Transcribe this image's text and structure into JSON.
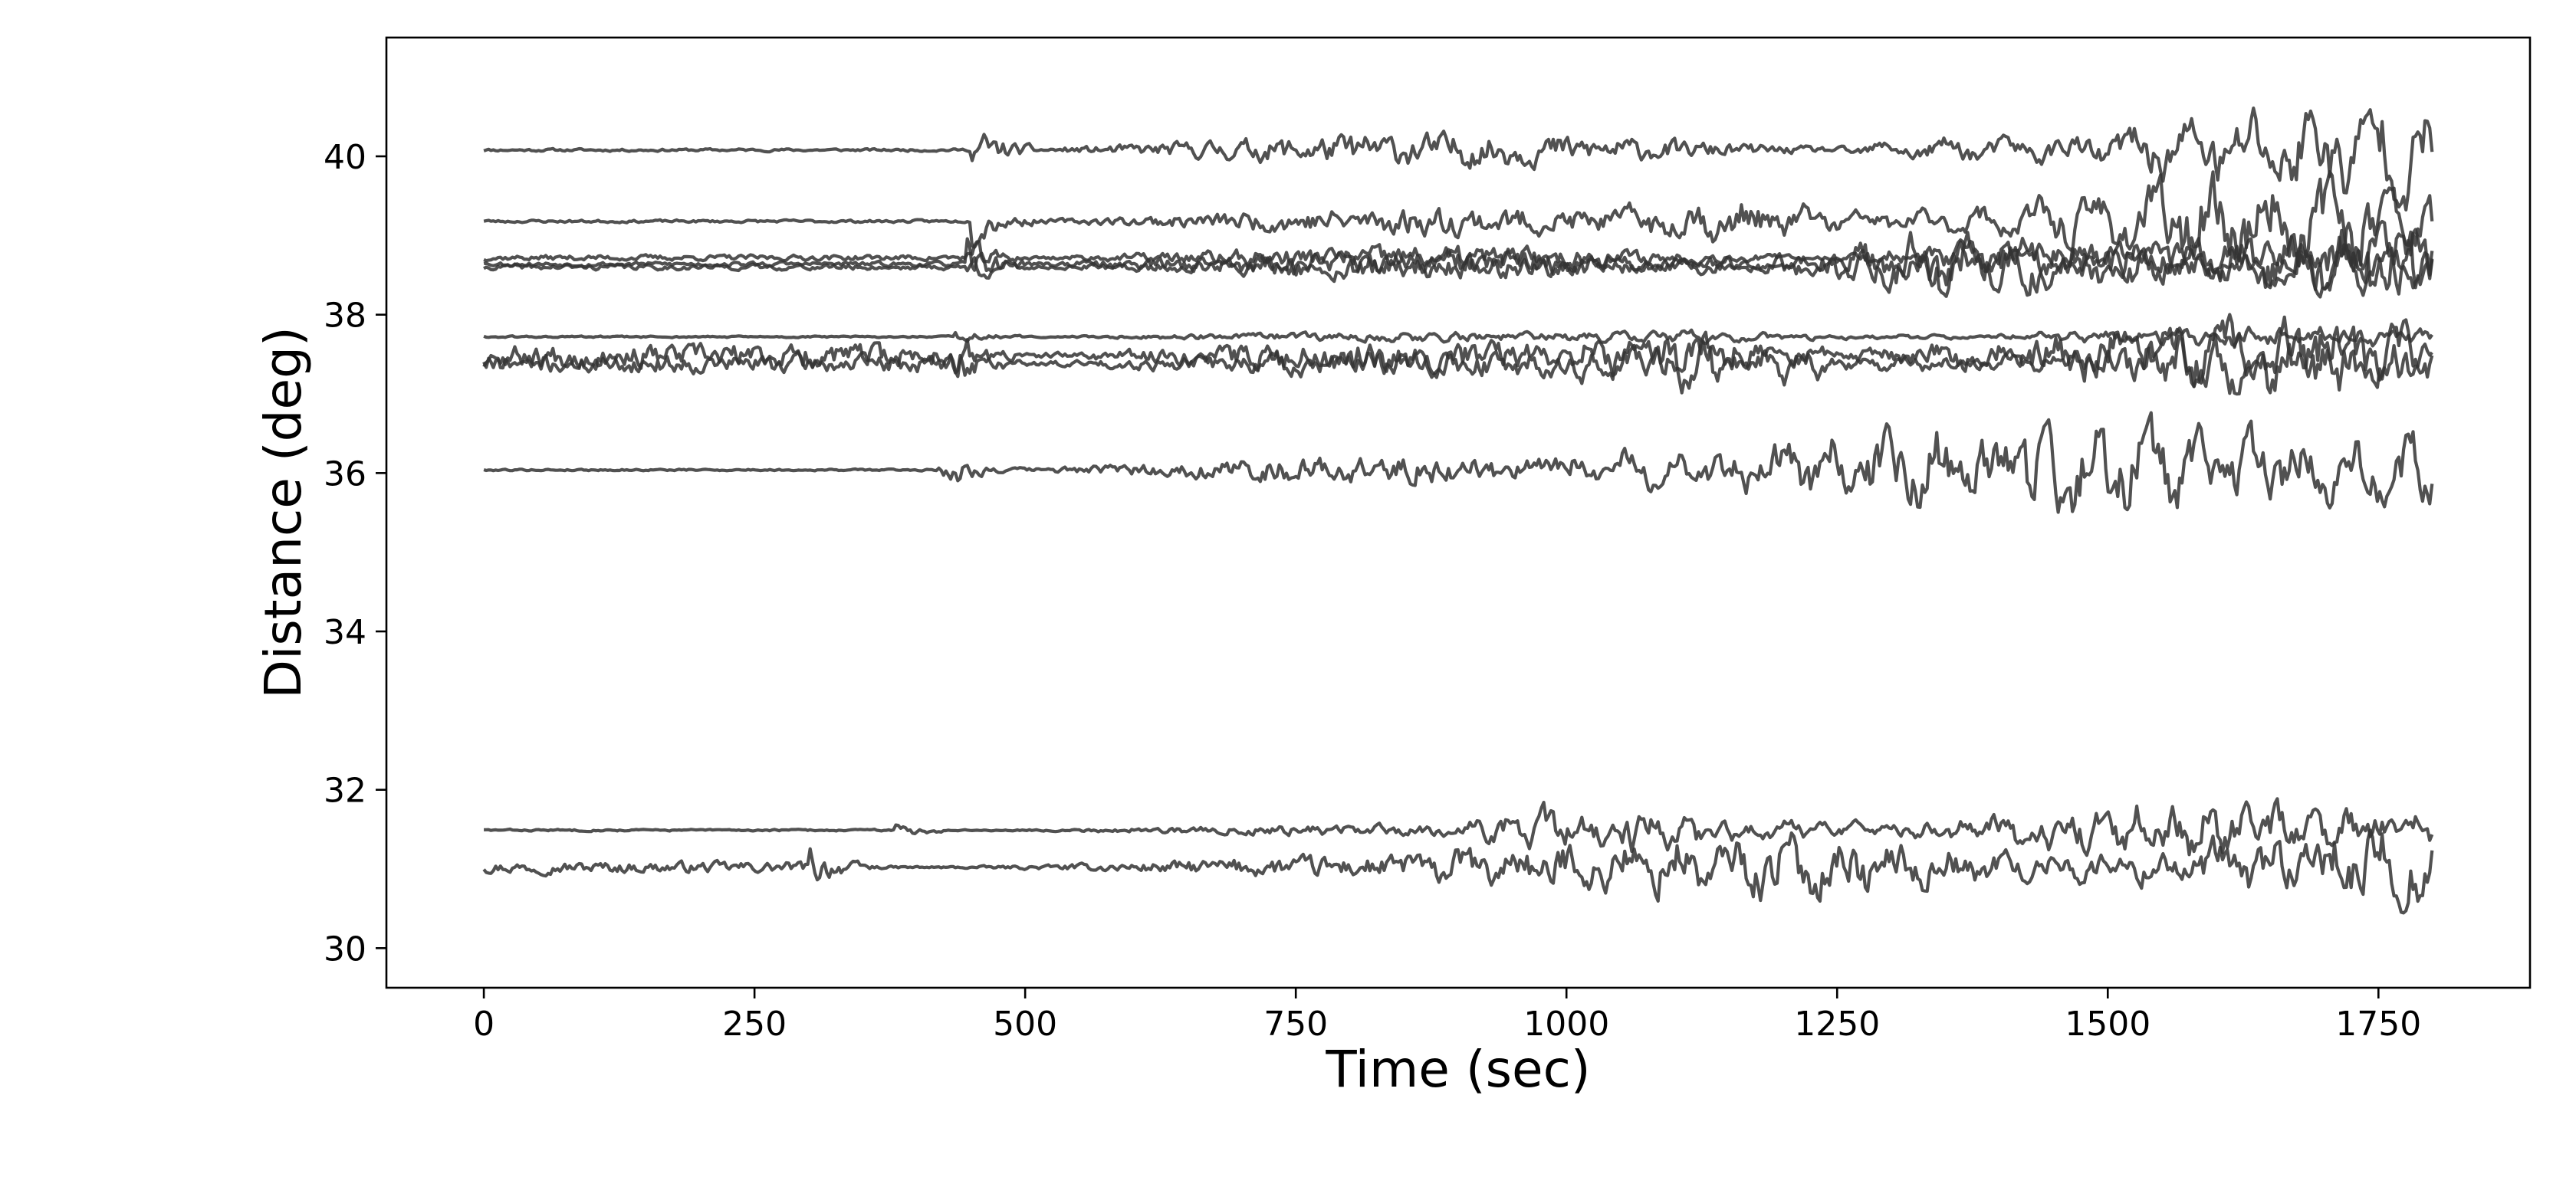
{
  "chart_data": {
    "type": "line",
    "title": "",
    "xlabel": "Time (sec)",
    "ylabel": "Distance (deg)",
    "xlim": [
      -90,
      1890
    ],
    "ylim": [
      29.5,
      41.5
    ],
    "xticks": [
      0,
      250,
      500,
      750,
      1000,
      1250,
      1500,
      1750
    ],
    "yticks": [
      30,
      32,
      34,
      36,
      38,
      40
    ],
    "xtick_labels": [
      "0",
      "250",
      "500",
      "750",
      "1000",
      "1250",
      "1500",
      "1750"
    ],
    "ytick_labels": [
      "30",
      "32",
      "34",
      "36",
      "38",
      "40"
    ],
    "grid": false,
    "legend": "none",
    "line_color": "#333333",
    "series": [
      {
        "offset": 40.08,
        "onset": 450,
        "pre_amp": 0.03,
        "coda_amp": 0.35,
        "late_amp": 0.45,
        "late_start": 1250,
        "seed": 11
      },
      {
        "offset": 39.18,
        "onset": 450,
        "pre_amp": 0.03,
        "coda_amp": 0.3,
        "late_amp": 0.45,
        "late_start": 1050,
        "seed": 23
      },
      {
        "offset": 38.72,
        "onset": 445,
        "pre_amp": 0.06,
        "coda_amp": 0.25,
        "late_amp": 0.3,
        "late_start": 1250,
        "seed": 37
      },
      {
        "offset": 38.6,
        "onset": 445,
        "pre_amp": 0.06,
        "coda_amp": 0.25,
        "late_amp": 0.35,
        "late_start": 1100,
        "seed": 41
      },
      {
        "offset": 38.64,
        "onset": 445,
        "pre_amp": 0.05,
        "coda_amp": 0.3,
        "late_amp": 0.5,
        "late_start": 1200,
        "seed": 53
      },
      {
        "offset": 37.72,
        "onset": 435,
        "pre_amp": 0.02,
        "coda_amp": 0.1,
        "late_amp": 0.08,
        "late_start": 1000,
        "seed": 61
      },
      {
        "offset": 37.48,
        "onset": 435,
        "pre_amp": 0.25,
        "coda_amp": 0.35,
        "late_amp": 0.3,
        "late_start": 1000,
        "seed": 67
      },
      {
        "offset": 37.38,
        "onset": 435,
        "pre_amp": 0.2,
        "coda_amp": 0.3,
        "late_amp": 0.3,
        "late_start": 1000,
        "seed": 71
      },
      {
        "offset": 36.04,
        "onset": 420,
        "pre_amp": 0.02,
        "coda_amp": 0.3,
        "late_amp": 0.75,
        "late_start": 1000,
        "seed": 79
      },
      {
        "offset": 31.49,
        "onset": 380,
        "pre_amp": 0.02,
        "coda_amp": 0.12,
        "late_amp": 0.35,
        "late_start": 900,
        "seed": 83
      },
      {
        "offset": 31.02,
        "onset": 300,
        "pre_amp": 0.12,
        "coda_amp": 0.25,
        "late_amp": 0.45,
        "late_start": 850,
        "seed": 97
      }
    ]
  }
}
